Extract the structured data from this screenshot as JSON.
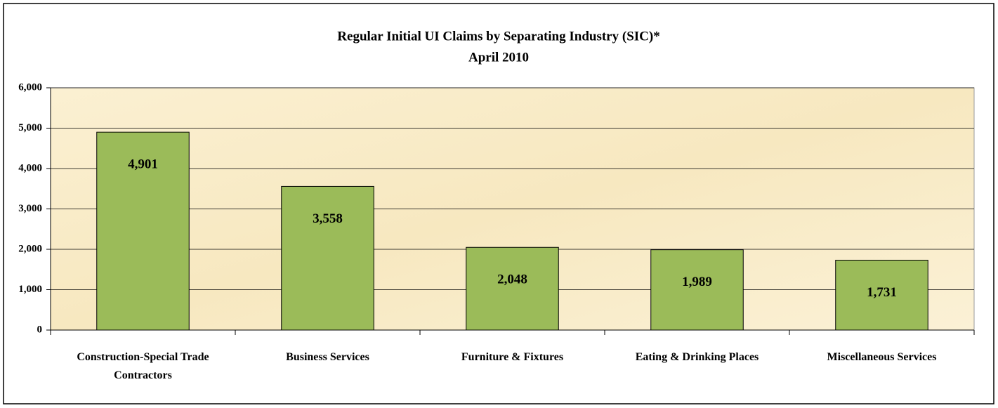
{
  "chart_data": {
    "type": "bar",
    "title": "Regular Initial UI Claims by Separating Industry (SIC)*",
    "subtitle": "April 2010",
    "categories": [
      "Construction-Special Trade Contractors",
      "Business Services",
      "Furniture & Fixtures",
      "Eating & Drinking Places",
      "Miscellaneous Services"
    ],
    "values": [
      4901,
      3558,
      2048,
      1989,
      1731
    ],
    "value_labels": [
      "4,901",
      "3,558",
      "2,048",
      "1,989",
      "1,731"
    ],
    "color": "#9bbb59",
    "ylim": [
      0,
      6000
    ],
    "yticks": [
      0,
      {
        "value": 1000,
        "label": "1,000"
      },
      {
        "value": 2000,
        "label": "2,000"
      },
      {
        "value": 3000,
        "label": "3,000"
      },
      {
        "value": 4000,
        "label": "4,000"
      },
      {
        "value": 5000,
        "label": "5,000"
      },
      {
        "value": 6000,
        "label": "6,000"
      }
    ],
    "grid": true
  }
}
